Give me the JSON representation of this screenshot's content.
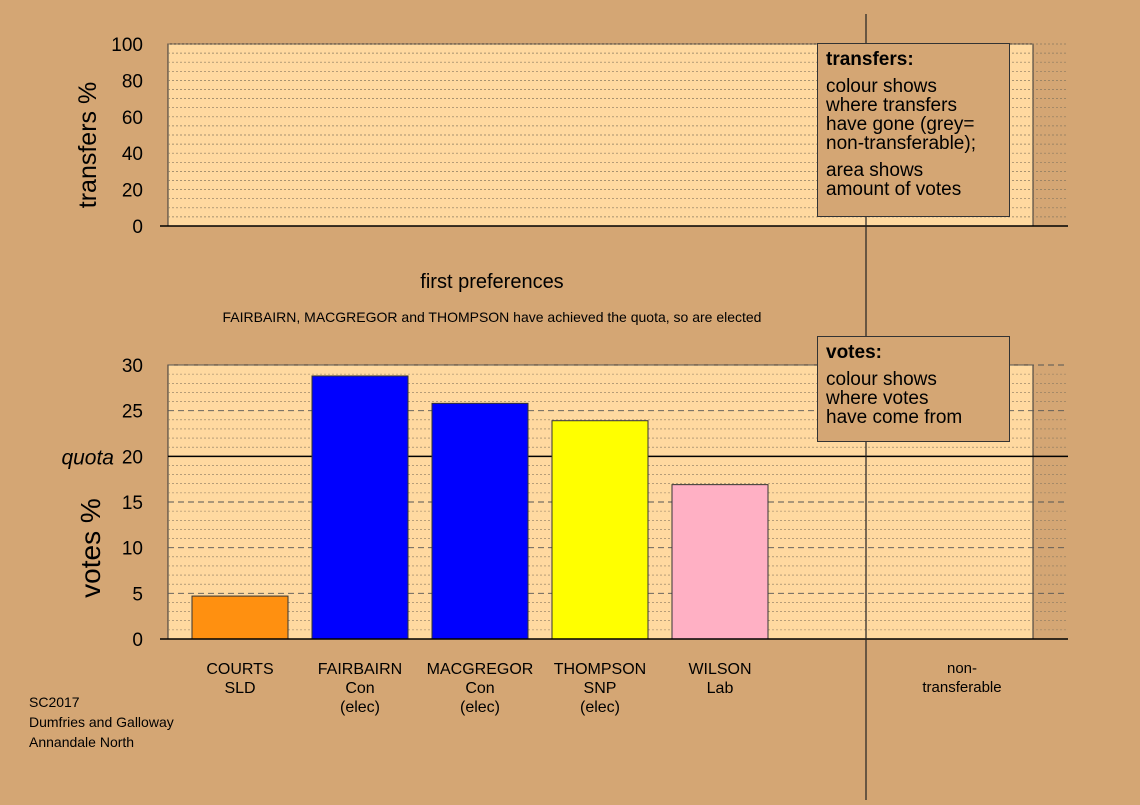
{
  "colors": {
    "background": "#d4a674",
    "plot_area": "#ffd9a0",
    "COURTS": "#ff9010",
    "FAIRBAIRN": "#0000ff",
    "MACGREGOR": "#0000ff",
    "THOMPSON": "#ffff00",
    "WILSON": "#ffb0c4"
  },
  "top_panel": {
    "ylabel": "transfers %",
    "ylim": [
      0,
      100
    ],
    "yticks": [
      "0",
      "20",
      "40",
      "60",
      "80",
      "100"
    ]
  },
  "stage_title": "first preferences",
  "elected_note": "FAIRBAIRN, MACGREGOR and THOMPSON have achieved the quota, so are elected",
  "transfers_box": {
    "heading": "transfers:",
    "lines": [
      "colour shows",
      "where transfers",
      "have gone (grey=",
      "non-transferable);"
    ],
    "lines2": [
      "area shows",
      "amount of votes"
    ]
  },
  "votes_box": {
    "heading": "votes:",
    "lines": [
      "colour shows",
      "where votes",
      "have come from"
    ]
  },
  "chart_data": {
    "type": "bar",
    "ylabel": "votes %",
    "ylim": [
      0,
      30
    ],
    "yticks": [
      "0",
      "5",
      "10",
      "15",
      "20",
      "25",
      "30"
    ],
    "quota": 20,
    "quota_label": "quota",
    "categories": [
      {
        "name": "COURTS",
        "party": "SLD",
        "status": ""
      },
      {
        "name": "FAIRBAIRN",
        "party": "Con",
        "status": "(elec)"
      },
      {
        "name": "MACGREGOR",
        "party": "Con",
        "status": "(elec)"
      },
      {
        "name": "THOMPSON",
        "party": "SNP",
        "status": "(elec)"
      },
      {
        "name": "WILSON",
        "party": "Lab",
        "status": ""
      }
    ],
    "values": [
      4.7,
      28.8,
      25.8,
      23.9,
      16.9
    ],
    "nontransferable_label": [
      "non-",
      "transferable"
    ]
  },
  "footer": {
    "lines": [
      "SC2017",
      "Dumfries and Galloway",
      "Annandale North"
    ]
  }
}
